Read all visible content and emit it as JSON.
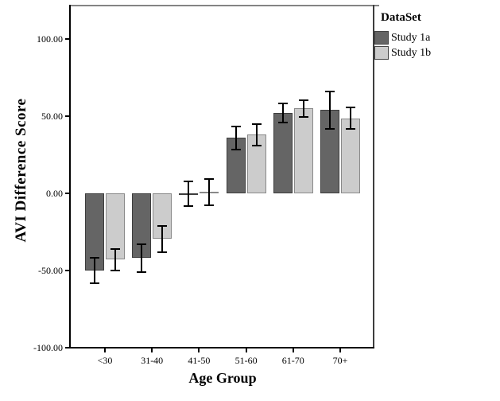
{
  "chart_data": {
    "type": "bar",
    "title": "",
    "xlabel": "Age Group",
    "ylabel": "AVI Difference Score",
    "legend_title": "DataSet",
    "legend_position": "top-right-outside",
    "grid": false,
    "error_bars": true,
    "categories": [
      "<30",
      "31-40",
      "41-50",
      "51-60",
      "61-70",
      "70+"
    ],
    "series": [
      {
        "name": "Study 1a",
        "fill": "#656565",
        "border": "#3d3d3d",
        "values": [
          -50,
          -42,
          -0.5,
          36,
          52,
          54
        ],
        "error_plus_minus": [
          8.5,
          9,
          8,
          7.5,
          6,
          12
        ]
      },
      {
        "name": "Study 1b",
        "fill": "#cccccc",
        "border": "#898989",
        "values": [
          -43,
          -29.5,
          1,
          38,
          55,
          48.5
        ],
        "error_plus_minus": [
          7,
          8.5,
          8.5,
          7,
          5.5,
          7
        ]
      }
    ],
    "ylim": [
      -100,
      121
    ],
    "yticks": [
      100,
      50,
      0,
      -50,
      -100
    ],
    "ytick_labels": [
      "100.00",
      "50.00",
      "0.00",
      "-50.00",
      "-100.00"
    ],
    "axis_color": "#000000",
    "error_bar_color": "#000000",
    "frame_top_color": "#848484",
    "frame_right_color": "#3d3d3d",
    "background_color": "#ffffff"
  }
}
